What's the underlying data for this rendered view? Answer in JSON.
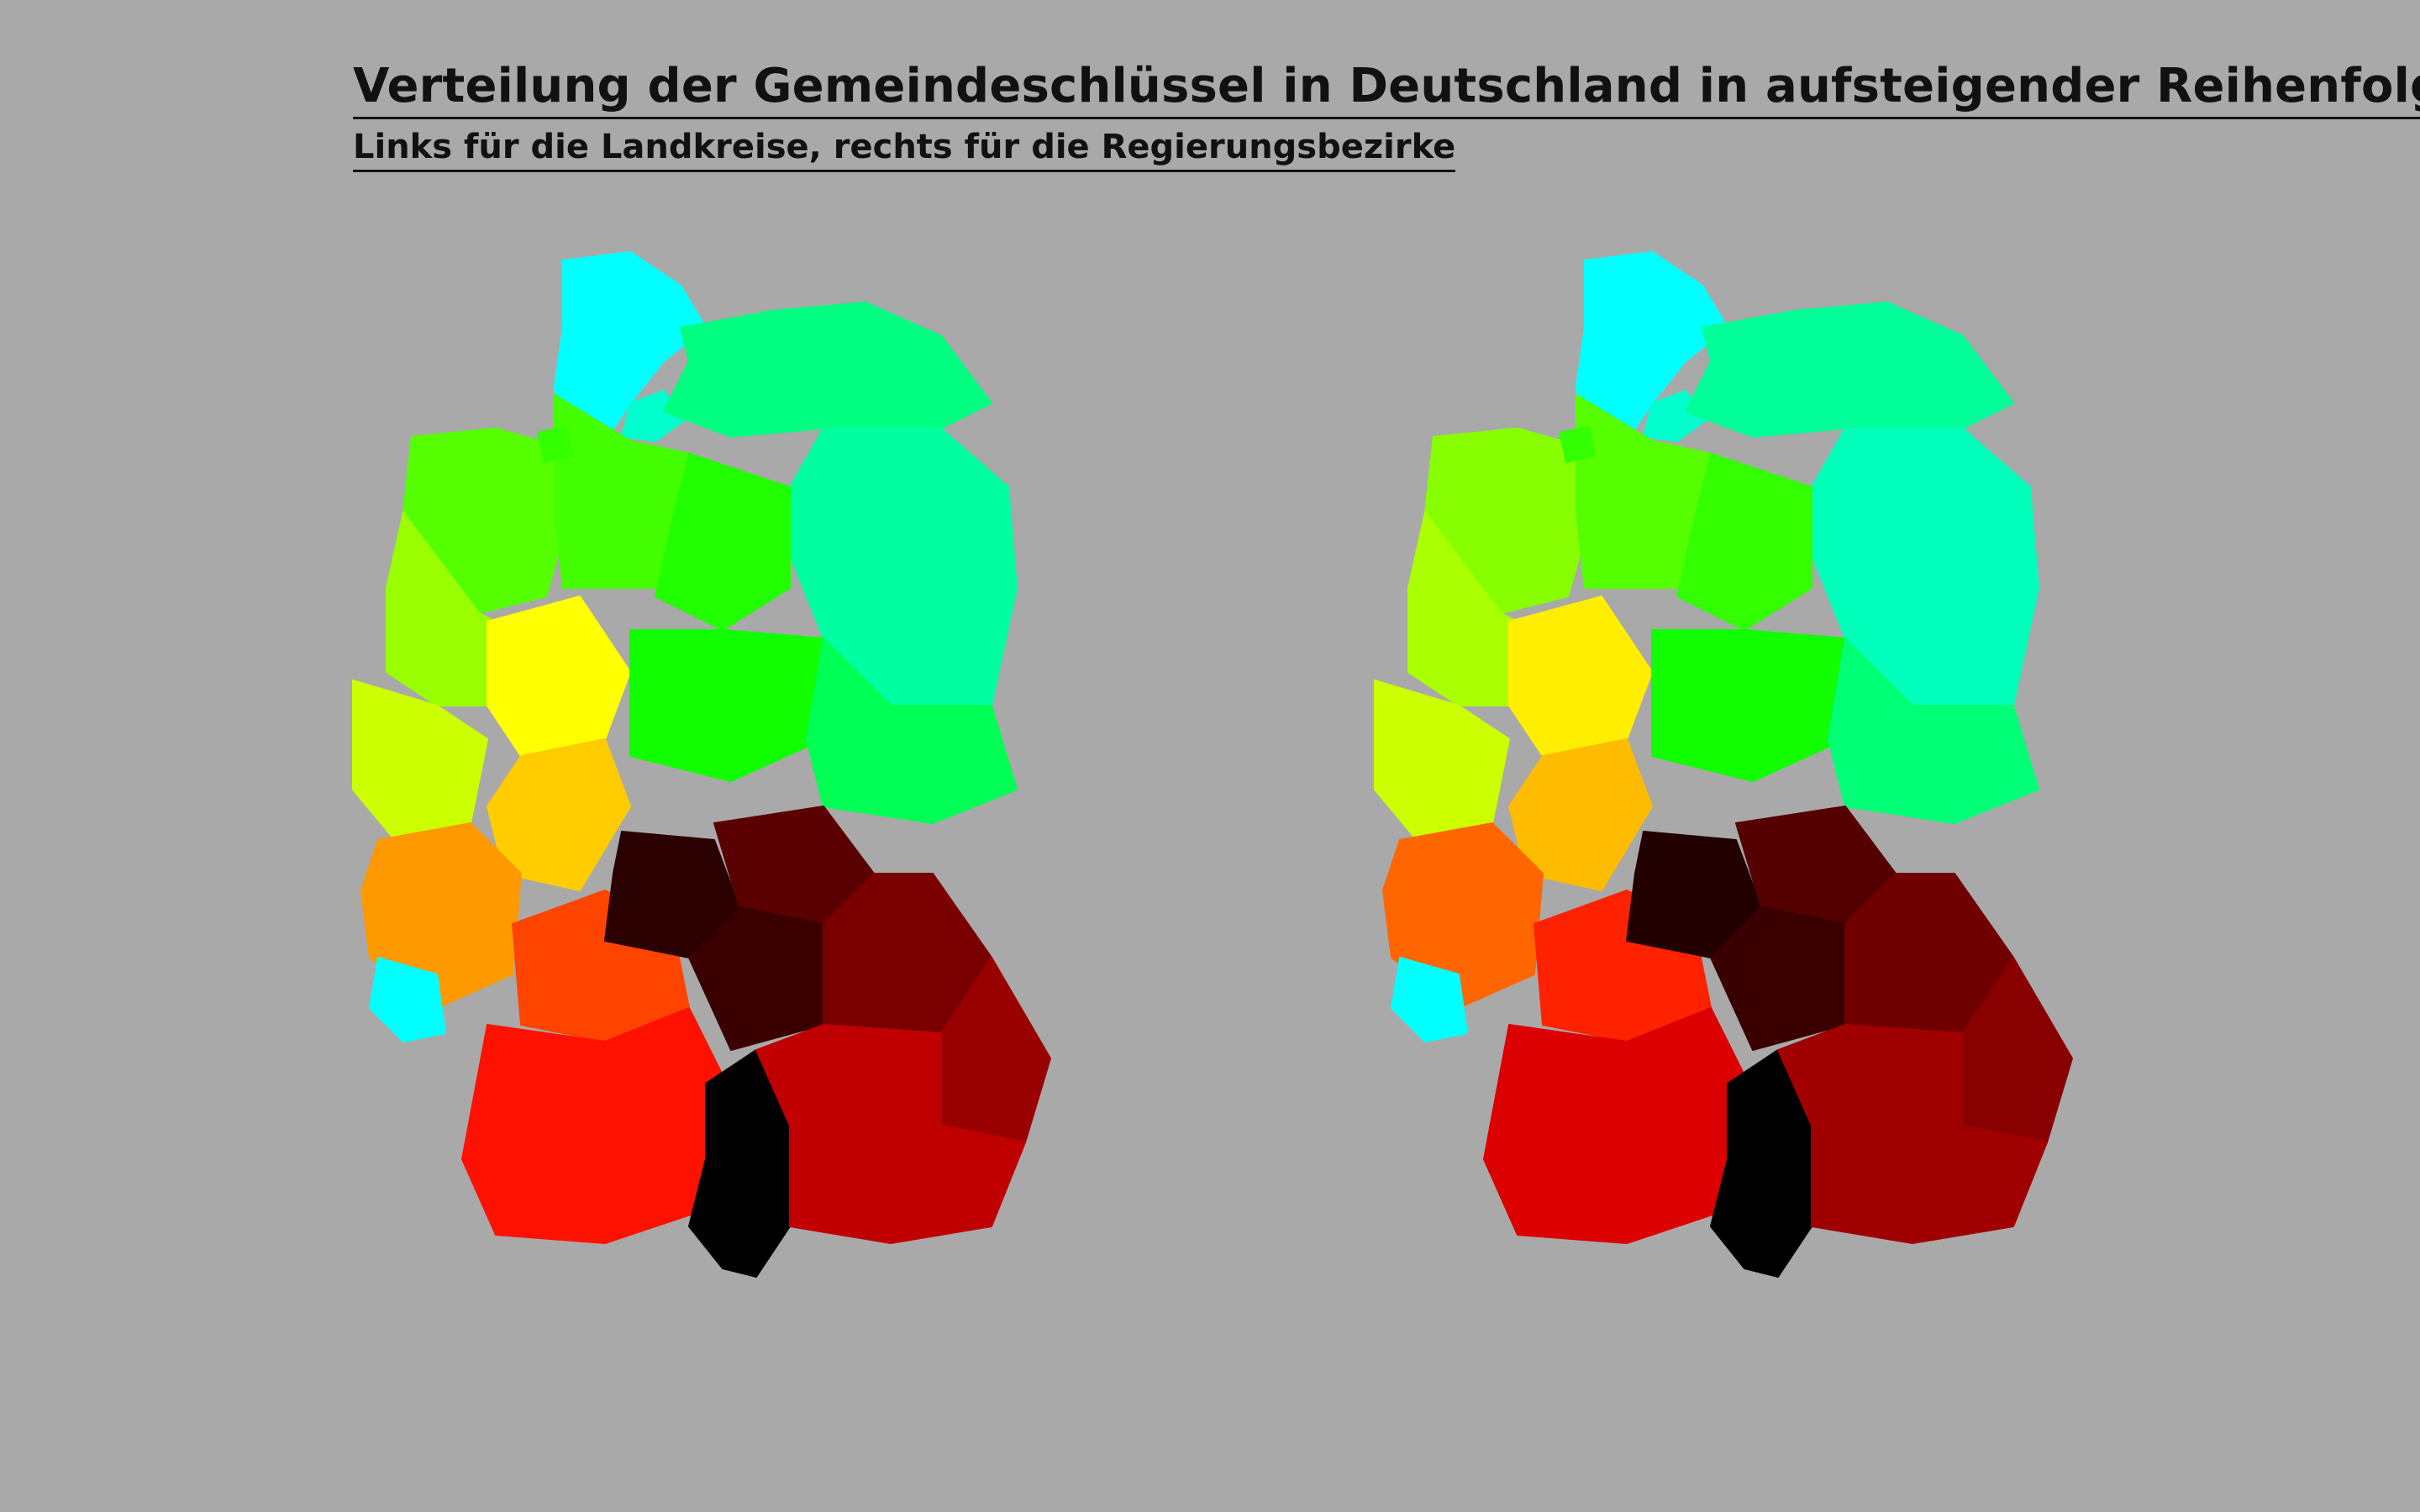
{
  "title": "Verteilung der Gemeindeschlüssel in Deutschland in aufsteigender Reihenfolge",
  "subtitle": "Links für die Landkreise, rechts für die Regierungsbezirke",
  "maps": [
    {
      "id": "landkreise",
      "regions": [
        {
          "name": "schleswig-holstein",
          "color": "#00ffff"
        },
        {
          "name": "hamburg",
          "color": "#00ffcc"
        },
        {
          "name": "mecklenburg-vorpommern",
          "color": "#00ff80"
        },
        {
          "name": "brandenburg",
          "color": "#00ffa0"
        },
        {
          "name": "niedersachsen-west",
          "color": "#55ff00"
        },
        {
          "name": "niedersachsen-ost",
          "color": "#44ff00"
        },
        {
          "name": "bremen",
          "color": "#33ff00"
        },
        {
          "name": "nordrhein-westfalen-nord",
          "color": "#99ff00"
        },
        {
          "name": "nordrhein-westfalen-sued",
          "color": "#ccff00"
        },
        {
          "name": "hessen-nord",
          "color": "#ffff00"
        },
        {
          "name": "hessen-sued",
          "color": "#ffcc00"
        },
        {
          "name": "sachsen-anhalt",
          "color": "#22ff00"
        },
        {
          "name": "thueringen",
          "color": "#11ff00"
        },
        {
          "name": "sachsen",
          "color": "#00ff55"
        },
        {
          "name": "rheinland-pfalz",
          "color": "#ff9900"
        },
        {
          "name": "saarland",
          "color": "#00ffff"
        },
        {
          "name": "baden-wuerttemberg-nord",
          "color": "#ff4400"
        },
        {
          "name": "baden-wuerttemberg-sued",
          "color": "#ff1100"
        },
        {
          "name": "bayern-unterfranken",
          "color": "#2a0000"
        },
        {
          "name": "bayern-oberfranken",
          "color": "#5a0000"
        },
        {
          "name": "bayern-mittelfranken",
          "color": "#3a0000"
        },
        {
          "name": "bayern-oberpfalz",
          "color": "#7a0000"
        },
        {
          "name": "bayern-niederbayern",
          "color": "#990000"
        },
        {
          "name": "bayern-schwaben",
          "color": "#000000"
        },
        {
          "name": "bayern-oberbayern",
          "color": "#c00000"
        }
      ]
    },
    {
      "id": "regierungsbezirke",
      "regions": [
        {
          "name": "schleswig-holstein",
          "color": "#00ffff"
        },
        {
          "name": "hamburg",
          "color": "#00ffcc"
        },
        {
          "name": "mecklenburg-vorpommern",
          "color": "#00ff99"
        },
        {
          "name": "brandenburg",
          "color": "#00ffbb"
        },
        {
          "name": "niedersachsen-west",
          "color": "#88ff00"
        },
        {
          "name": "niedersachsen-ost",
          "color": "#55ff00"
        },
        {
          "name": "bremen",
          "color": "#33ff00"
        },
        {
          "name": "nordrhein-westfalen-nord",
          "color": "#aaff00"
        },
        {
          "name": "nordrhein-westfalen-sued",
          "color": "#ccff00"
        },
        {
          "name": "hessen-nord",
          "color": "#ffee00"
        },
        {
          "name": "hessen-sued",
          "color": "#ffbb00"
        },
        {
          "name": "sachsen-anhalt",
          "color": "#33ff00"
        },
        {
          "name": "thueringen",
          "color": "#11ff00"
        },
        {
          "name": "sachsen",
          "color": "#00ff77"
        },
        {
          "name": "rheinland-pfalz",
          "color": "#ff6600"
        },
        {
          "name": "saarland",
          "color": "#00ffff"
        },
        {
          "name": "baden-wuerttemberg-nord",
          "color": "#ff2200"
        },
        {
          "name": "baden-wuerttemberg-sued",
          "color": "#dd0000"
        },
        {
          "name": "bayern-unterfranken",
          "color": "#220000"
        },
        {
          "name": "bayern-oberfranken",
          "color": "#550000"
        },
        {
          "name": "bayern-mittelfranken",
          "color": "#3a0000"
        },
        {
          "name": "bayern-oberpfalz",
          "color": "#700000"
        },
        {
          "name": "bayern-niederbayern",
          "color": "#880000"
        },
        {
          "name": "bayern-schwaben",
          "color": "#000000"
        },
        {
          "name": "bayern-oberbayern",
          "color": "#a00000"
        }
      ]
    }
  ]
}
